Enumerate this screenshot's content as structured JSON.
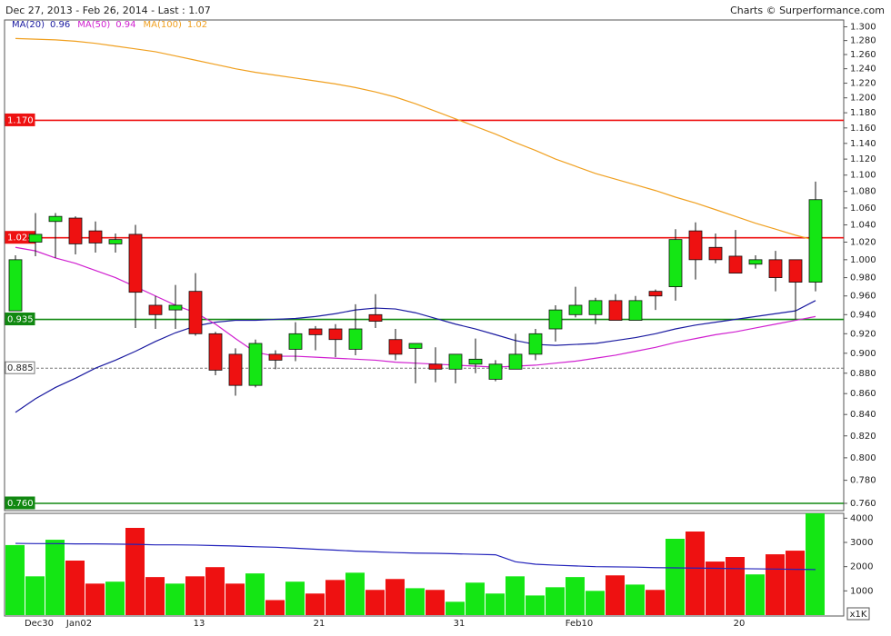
{
  "chart_data": {
    "type": "candlestick",
    "title": "Dec 27, 2013 - Feb 26, 2014 - Last : 1.07",
    "credit": "Charts © Surperformance.com",
    "categories": [
      null,
      "Dec30",
      null,
      "Jan02",
      null,
      null,
      null,
      null,
      null,
      "13",
      null,
      null,
      null,
      null,
      null,
      "21",
      null,
      null,
      null,
      null,
      null,
      null,
      "31",
      null,
      null,
      null,
      null,
      null,
      "Feb10",
      null,
      null,
      null,
      null,
      null,
      null,
      null,
      "20",
      null,
      null,
      null,
      null
    ],
    "open": [
      0.944,
      1.02,
      1.044,
      1.048,
      1.033,
      1.018,
      1.029,
      0.95,
      0.945,
      0.965,
      0.92,
      0.899,
      0.868,
      0.899,
      0.904,
      0.925,
      0.925,
      0.904,
      0.94,
      0.914,
      0.905,
      0.889,
      0.884,
      0.889,
      0.874,
      0.884,
      0.899,
      0.925,
      0.94,
      0.94,
      0.955,
      0.934,
      0.965,
      0.97,
      1.033,
      1.014,
      1.004,
      0.995,
      1.0,
      1.0,
      0.975
    ],
    "high": [
      1.005,
      1.054,
      1.054,
      1.05,
      1.044,
      1.03,
      1.04,
      0.96,
      0.972,
      0.985,
      0.922,
      0.905,
      0.914,
      0.903,
      0.932,
      0.928,
      0.93,
      0.951,
      0.962,
      0.925,
      0.91,
      0.906,
      0.899,
      0.915,
      0.893,
      0.92,
      0.925,
      0.95,
      0.97,
      0.958,
      0.962,
      0.96,
      0.967,
      1.035,
      1.043,
      1.03,
      1.034,
      1.005,
      1.01,
      1.0,
      1.092
    ],
    "low": [
      0.944,
      1.004,
      1.002,
      1.006,
      1.008,
      1.008,
      0.926,
      0.925,
      0.925,
      0.918,
      0.878,
      0.858,
      0.866,
      0.884,
      0.892,
      0.903,
      0.896,
      0.898,
      0.926,
      0.893,
      0.87,
      0.871,
      0.87,
      0.88,
      0.872,
      0.884,
      0.893,
      0.912,
      0.937,
      0.93,
      0.934,
      0.934,
      0.945,
      0.955,
      0.978,
      0.996,
      0.985,
      0.99,
      0.965,
      0.935,
      0.965
    ],
    "close": [
      1.0,
      1.029,
      1.05,
      1.018,
      1.019,
      1.023,
      0.964,
      0.94,
      0.95,
      0.92,
      0.883,
      0.868,
      0.91,
      0.893,
      0.92,
      0.919,
      0.914,
      0.925,
      0.933,
      0.899,
      0.91,
      0.884,
      0.899,
      0.894,
      0.889,
      0.899,
      0.92,
      0.945,
      0.95,
      0.955,
      0.934,
      0.955,
      0.96,
      1.023,
      1.0,
      1.0,
      0.985,
      1.0,
      0.98,
      0.975,
      1.07
    ],
    "up_color": "#14e614",
    "down_color": "#ee1111",
    "series": [
      {
        "name": "MA(20)",
        "last": 0.96,
        "color": "#1a1aa0",
        "values": [
          0.842,
          0.855,
          0.866,
          0.875,
          0.885,
          0.893,
          0.902,
          0.912,
          0.921,
          0.928,
          0.932,
          0.934,
          0.934,
          0.935,
          0.936,
          0.938,
          0.941,
          0.945,
          0.947,
          0.946,
          0.942,
          0.936,
          0.93,
          0.925,
          0.919,
          0.913,
          0.909,
          0.908,
          0.909,
          0.91,
          0.913,
          0.916,
          0.92,
          0.925,
          0.929,
          0.932,
          0.935,
          0.938,
          0.941,
          0.944,
          0.955
        ]
      },
      {
        "name": "MA(50)",
        "last": 0.94,
        "color": "#d020d0",
        "values": [
          1.014,
          1.01,
          1.002,
          0.996,
          0.988,
          0.98,
          0.97,
          0.96,
          0.95,
          0.942,
          0.93,
          0.915,
          0.901,
          0.897,
          0.897,
          0.896,
          0.895,
          0.894,
          0.893,
          0.891,
          0.89,
          0.889,
          0.888,
          0.887,
          0.886,
          0.887,
          0.888,
          0.89,
          0.892,
          0.895,
          0.898,
          0.902,
          0.906,
          0.911,
          0.915,
          0.919,
          0.922,
          0.926,
          0.93,
          0.934,
          0.938
        ]
      },
      {
        "name": "MA(100)",
        "last": 1.02,
        "color": "#f0a020",
        "values": [
          1.283,
          1.282,
          1.281,
          1.279,
          1.276,
          1.272,
          1.268,
          1.264,
          1.258,
          1.252,
          1.246,
          1.24,
          1.235,
          1.231,
          1.227,
          1.223,
          1.219,
          1.214,
          1.208,
          1.201,
          1.192,
          1.182,
          1.172,
          1.162,
          1.152,
          1.141,
          1.131,
          1.12,
          1.111,
          1.102,
          1.095,
          1.088,
          1.081,
          1.073,
          1.066,
          1.058,
          1.05,
          1.042,
          1.035,
          1.028,
          1.022
        ]
      }
    ],
    "levels": [
      {
        "value": 1.17,
        "label": "1.170",
        "color": "#ee1111"
      },
      {
        "value": 1.025,
        "color": "#ee1111"
      },
      {
        "value": 0.935,
        "color": "#118811"
      },
      {
        "value": 0.885,
        "color": "#777777",
        "style": "dashed"
      },
      {
        "value": 0.76,
        "label": "0.760",
        "color": "#118811"
      }
    ],
    "log_scale": true,
    "ylim": [
      0.76,
      1.31
    ],
    "yticks": [
      {
        "value": 0.76,
        "label": "0.760"
      },
      {
        "value": 0.78,
        "label": "0.780"
      },
      {
        "value": 0.8,
        "label": "0.800"
      },
      {
        "value": 0.82,
        "label": "0.820"
      },
      {
        "value": 0.84,
        "label": "0.840"
      },
      {
        "value": 0.86,
        "label": "0.860"
      },
      {
        "value": 0.88,
        "label": "0.880"
      },
      {
        "value": 0.9,
        "label": "0.900"
      },
      {
        "value": 0.92,
        "label": "0.920"
      },
      {
        "value": 0.94,
        "label": "0.940"
      },
      {
        "value": 0.96,
        "label": "0.960"
      },
      {
        "value": 0.98,
        "label": "0.980"
      },
      {
        "value": 1,
        "label": "1.000"
      },
      {
        "value": 1.02,
        "label": "1.020"
      },
      {
        "value": 1.04,
        "label": "1.040"
      },
      {
        "value": 1.06,
        "label": "1.060"
      },
      {
        "value": 1.08,
        "label": "1.080"
      },
      {
        "value": 1.1,
        "label": "1.100"
      },
      {
        "value": 1.12,
        "label": "1.120"
      },
      {
        "value": 1.14,
        "label": "1.140"
      },
      {
        "value": 1.16,
        "label": "1.160"
      },
      {
        "value": 1.18,
        "label": "1.180"
      },
      {
        "value": 1.2,
        "label": "1.200"
      },
      {
        "value": 1.22,
        "label": "1.220"
      },
      {
        "value": 1.24,
        "label": "1.240"
      },
      {
        "value": 1.26,
        "label": "1.260"
      },
      {
        "value": 1.28,
        "label": "1.280"
      },
      {
        "value": 1.3,
        "label": "1.300"
      }
    ],
    "volume": {
      "values": [
        2890,
        1600,
        3110,
        2250,
        1300,
        1380,
        3600,
        1570,
        1300,
        1600,
        1980,
        1300,
        1720,
        620,
        1380,
        890,
        1450,
        1750,
        1040,
        1490,
        1110,
        1040,
        550,
        1340,
        890,
        1600,
        810,
        1150,
        1570,
        1000,
        1640,
        1260,
        1040,
        3150,
        3450,
        2210,
        2400,
        1680,
        2510,
        2660,
        4200
      ],
      "average": [
        2960,
        2950,
        2950,
        2940,
        2940,
        2930,
        2920,
        2900,
        2900,
        2890,
        2870,
        2850,
        2820,
        2800,
        2760,
        2720,
        2680,
        2640,
        2610,
        2580,
        2560,
        2550,
        2530,
        2510,
        2490,
        2200,
        2100,
        2060,
        2030,
        2000,
        1990,
        1980,
        1960,
        1950,
        1940,
        1930,
        1920,
        1910,
        1900,
        1890,
        1880
      ],
      "average_color": "#2222bb",
      "unit_label": "x1K",
      "ylim": [
        0,
        4200
      ],
      "yticks": [
        1000,
        2000,
        3000,
        4000
      ]
    }
  }
}
